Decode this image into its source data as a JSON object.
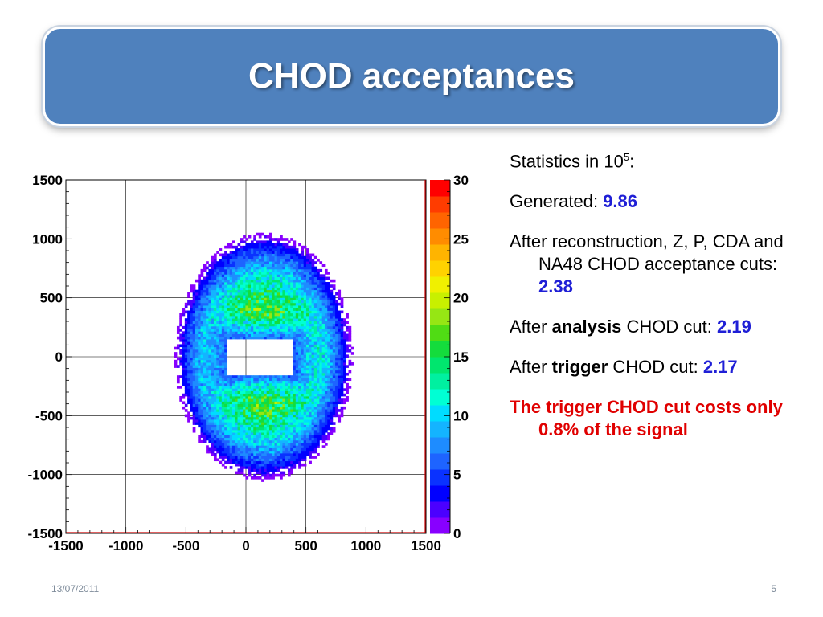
{
  "slide": {
    "title": "CHOD acceptances",
    "date": "13/07/2011",
    "page_number": "5",
    "title_bg_color": "#4f81bd"
  },
  "stats": {
    "header_prefix": "Statistics in 10",
    "header_exponent": "5",
    "header_suffix": ":",
    "generated_label": "Generated: ",
    "generated_value": "9.86",
    "reco_label": "After reconstruction, Z, P, CDA and NA48 CHOD acceptance cuts:",
    "reco_value": "2.38",
    "analysis_prefix": "After ",
    "analysis_bold": "analysis",
    "analysis_suffix": " CHOD cut: ",
    "analysis_value": "2.19",
    "trigger_prefix": "After ",
    "trigger_bold": "trigger",
    "trigger_suffix": " CHOD cut: ",
    "trigger_value": "2.17",
    "conclusion": "The trigger CHOD cut costs only 0.8% of the signal",
    "value_color": "#1f1fd6",
    "conclusion_color": "#e00000"
  },
  "chart_data": {
    "type": "heatmap",
    "xlim": [
      -1500,
      1500
    ],
    "ylim": [
      -1500,
      1500
    ],
    "x_ticks": [
      "-1500",
      "-1000",
      "-500",
      "0",
      "500",
      "1000",
      "1500"
    ],
    "y_ticks": [
      "1500",
      "1000",
      "500",
      "0",
      "-500",
      "-1000",
      "-1500"
    ],
    "z_range": [
      0,
      30
    ],
    "z_ticks": [
      "30",
      "25",
      "20",
      "15",
      "10",
      "5",
      "0"
    ],
    "grid": true,
    "distribution": {
      "shape": "ring",
      "center": [
        150,
        0
      ],
      "outer_radius_x": 740,
      "outer_radius_y": 1050,
      "hole_x_range": [
        -150,
        400
      ],
      "hole_y_range": [
        -150,
        150
      ],
      "peak_density": 18
    }
  }
}
